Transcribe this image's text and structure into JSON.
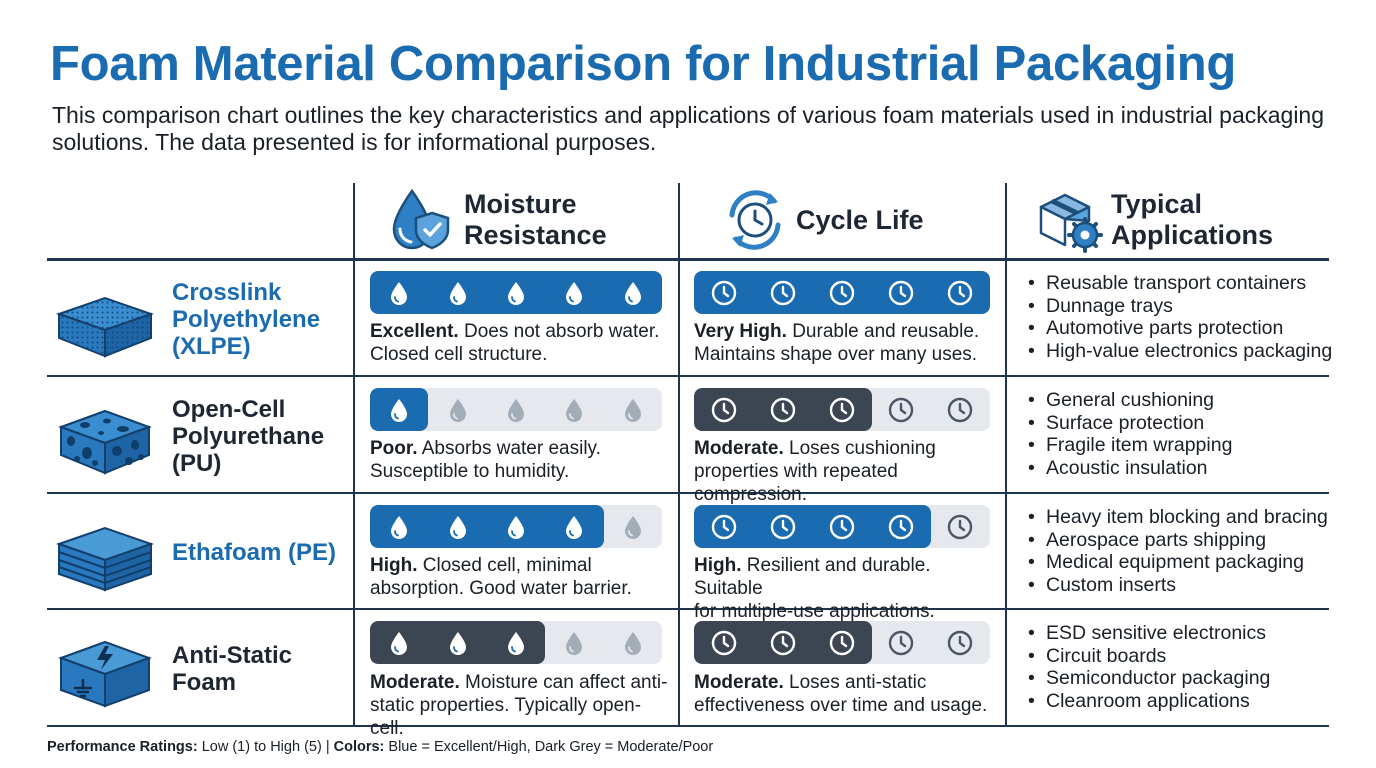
{
  "header": {
    "title": "Foam Material Comparison for Industrial Packaging",
    "subtitle": "This comparison chart outlines the key characteristics and applications of various foam materials used in industrial packaging solutions. The data presented is for informational purposes."
  },
  "columns": [
    {
      "label_line1": "Moisture",
      "label_line2": "Resistance",
      "icon": "water-drop-shield-icon"
    },
    {
      "label_line1": "Cycle Life",
      "label_line2": "",
      "icon": "cycle-clock-icon"
    },
    {
      "label_line1": "Typical",
      "label_line2": "Applications",
      "icon": "package-gear-icon"
    }
  ],
  "materials": [
    {
      "name_lines": [
        "Crosslink",
        "Polyethylene",
        "(XLPE)"
      ],
      "name_color": "#1b6bb0",
      "icon": "xlpe-foam-block-icon",
      "moisture": {
        "rating": 5,
        "max": 5,
        "level": "Excellent.",
        "text_line1": "Does not absorb water.",
        "text_line2": "Closed cell structure.",
        "line1_lead": "Excellent.",
        "line2": "Closed cell structure."
      },
      "cycle": {
        "rating": 5,
        "max": 5,
        "level": "Very High.",
        "text_line1": "Durable and reusable.",
        "text_line2": "Maintains shape over many uses."
      },
      "applications": [
        "Reusable transport containers",
        "Dunnage trays",
        "Automotive parts protection",
        "High-value electronics packaging"
      ]
    },
    {
      "name_lines": [
        "Open-Cell",
        "Polyurethane",
        "(PU)"
      ],
      "name_color": "#1d2633",
      "icon": "open-cell-foam-icon",
      "moisture": {
        "rating": 1,
        "max": 5,
        "level": "Poor.",
        "text_line1": "Absorbs water easily.",
        "text_line2": "Susceptible to humidity."
      },
      "cycle": {
        "rating": 3,
        "max": 5,
        "level": "Moderate.",
        "text_line1": "Loses cushioning",
        "text_line2": "properties with repeated compression."
      },
      "applications": [
        "General cushioning",
        "Surface protection",
        "Fragile item wrapping",
        "Acoustic insulation"
      ]
    },
    {
      "name_lines": [
        "Ethafoam (PE)"
      ],
      "name_color": "#1b6bb0",
      "icon": "layered-pe-foam-icon",
      "moisture": {
        "rating": 4,
        "max": 5,
        "level": "High.",
        "text_line1": "Closed cell, minimal",
        "text_line2": "absorption. Good water barrier."
      },
      "cycle": {
        "rating": 4,
        "max": 5,
        "level": "High.",
        "text_line1": "Resilient and durable. Suitable",
        "text_line2": "for multiple-use applications."
      },
      "applications": [
        "Heavy item blocking and bracing",
        "Aerospace parts shipping",
        "Medical equipment packaging",
        "Custom inserts"
      ]
    },
    {
      "name_lines": [
        "Anti-Static",
        "Foam"
      ],
      "name_color": "#1d2633",
      "icon": "anti-static-box-icon",
      "moisture": {
        "rating": 3,
        "max": 5,
        "level": "Moderate.",
        "text_line1": "Moisture can affect anti-",
        "text_line2": "static properties. Typically open-cell."
      },
      "cycle": {
        "rating": 3,
        "max": 5,
        "level": "Moderate.",
        "text_line1": "Loses anti-static",
        "text_line2": "effectiveness over time and usage."
      },
      "applications": [
        "ESD sensitive electronics",
        "Circuit boards",
        "Semiconductor packaging",
        "Cleanroom applications"
      ]
    }
  ],
  "footer": {
    "ratings_label": "Performance Ratings:",
    "ratings_text": " Low (1) to High (5) | ",
    "colors_label": "Colors:",
    "colors_text": " Blue = Excellent/High, Dark Grey = Moderate/Poor"
  },
  "colors": {
    "blue": "#1b6bb0",
    "dark_grey": "#3c4652",
    "empty": "#e5e9ee",
    "rule": "#1f3550"
  }
}
